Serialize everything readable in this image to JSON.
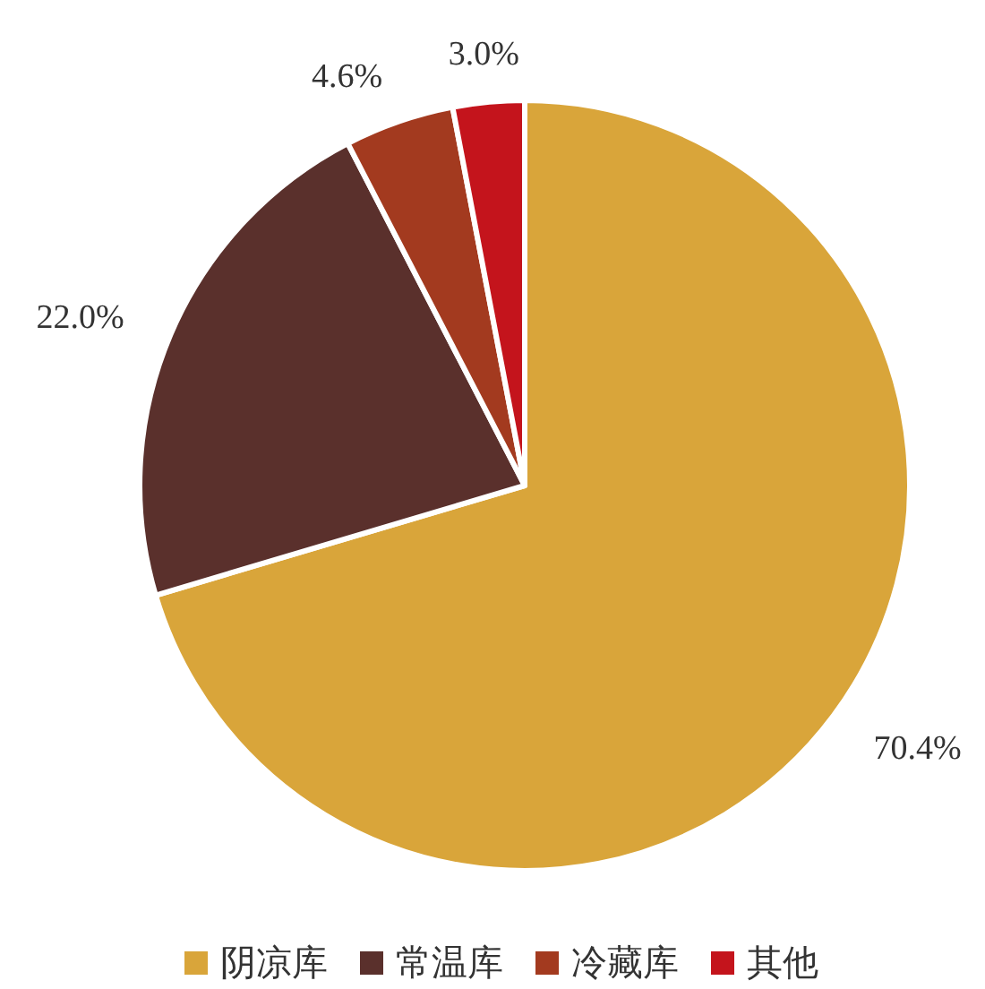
{
  "chart_data": {
    "type": "pie",
    "categories": [
      "阴凉库",
      "常温库",
      "冷藏库",
      "其他"
    ],
    "values": [
      70.4,
      22.0,
      4.6,
      3.0
    ],
    "colors": [
      "#d9a53a",
      "#5a302c",
      "#a33a1f",
      "#c4141c"
    ],
    "value_labels": [
      "70.4%",
      "22.0%",
      "4.6%",
      "3.0%"
    ],
    "legend": "bottom"
  }
}
